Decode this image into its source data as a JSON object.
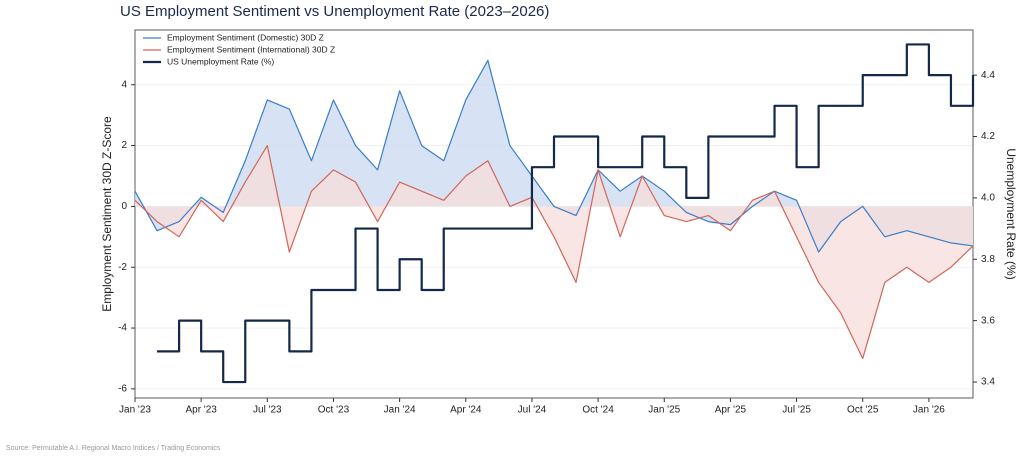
{
  "chart_data": {
    "type": "line",
    "title": "US Employment Sentiment vs Unemployment Rate (2023–2026)",
    "y_label": "Employment Sentiment 30D Z-Score",
    "y2_label": "Unemployment Rate (%)",
    "source": "Source: Permutable A.I. Regional Macro Indices / Trading Economics",
    "x": [
      "2023-01",
      "2023-02",
      "2023-03",
      "2023-04",
      "2023-05",
      "2023-06",
      "2023-07",
      "2023-08",
      "2023-09",
      "2023-10",
      "2023-11",
      "2023-12",
      "2024-01",
      "2024-02",
      "2024-03",
      "2024-04",
      "2024-05",
      "2024-06",
      "2024-07",
      "2024-08",
      "2024-09",
      "2024-10",
      "2024-11",
      "2024-12",
      "2025-01",
      "2025-02",
      "2025-03",
      "2025-04",
      "2025-05",
      "2025-06",
      "2025-07",
      "2025-08",
      "2025-09",
      "2025-10",
      "2025-11",
      "2025-12",
      "2026-01",
      "2026-02",
      "2026-03"
    ],
    "xlim": [
      "2023-01",
      "2026-03"
    ],
    "xticks": [
      {
        "value": "2023-01",
        "label": "Jan '23"
      },
      {
        "value": "2023-04",
        "label": "Apr '23"
      },
      {
        "value": "2023-07",
        "label": "Jul '23"
      },
      {
        "value": "2023-10",
        "label": "Oct '23"
      },
      {
        "value": "2024-01",
        "label": "Jan '24"
      },
      {
        "value": "2024-04",
        "label": "Apr '24"
      },
      {
        "value": "2024-07",
        "label": "Jul '24"
      },
      {
        "value": "2024-10",
        "label": "Oct '24"
      },
      {
        "value": "2025-01",
        "label": "Jan '25"
      },
      {
        "value": "2025-04",
        "label": "Apr '25"
      },
      {
        "value": "2025-07",
        "label": "Jul '25"
      },
      {
        "value": "2025-10",
        "label": "Oct '25"
      },
      {
        "value": "2026-01",
        "label": "Jan '26"
      }
    ],
    "ylim": [
      -6.3,
      5.8
    ],
    "yticks": [
      -6,
      -4,
      -2,
      0,
      2,
      4
    ],
    "y2lim": [
      3.348,
      4.547
    ],
    "y2ticks": [
      3.4,
      3.6,
      3.8,
      {
        "value": 4,
        "label": "4.0"
      },
      4.2,
      4.4
    ],
    "grid": true,
    "legend": "upper left",
    "series": [
      {
        "name": "Employment Sentiment (Domestic) 30D Z",
        "color": "#3a7dc9",
        "fill": "#c9daf0",
        "values": [
          0.5,
          -0.8,
          -0.5,
          0.3,
          -0.2,
          1.5,
          3.5,
          3.2,
          1.5,
          3.5,
          2.0,
          1.2,
          3.8,
          2.0,
          1.5,
          3.5,
          4.8,
          2.0,
          1.0,
          0,
          -0.3,
          1.2,
          0.5,
          1.0,
          0.5,
          -0.2,
          -0.5,
          -0.6,
          0,
          0.5,
          0.2,
          -1.5,
          -0.5,
          0,
          -1.0,
          -0.8,
          -1.0,
          -1.2,
          -1.3
        ]
      },
      {
        "name": "Employment Sentiment (International) 30D Z",
        "color": "#d0675a",
        "fill": "#f7dedb",
        "values": [
          0.2,
          -0.5,
          -1.0,
          0.2,
          -0.5,
          0.8,
          2.0,
          -1.5,
          0.5,
          1.2,
          0.8,
          -0.5,
          0.8,
          0.5,
          0.2,
          1.0,
          1.5,
          0,
          0.3,
          -1.0,
          -2.5,
          1.2,
          -1.0,
          1.0,
          -0.3,
          -0.5,
          -0.3,
          -0.8,
          0.2,
          0.5,
          -1.0,
          -2.5,
          -3.5,
          -5.0,
          -2.5,
          -2.0,
          -2.5,
          -2.0,
          -1.3
        ]
      },
      {
        "name": "US Unemployment Rate (%)",
        "color": "#14284b",
        "axis": "y2",
        "step": true,
        "values": [
          null,
          3.5,
          3.6,
          3.5,
          3.4,
          3.6,
          3.6,
          3.5,
          3.7,
          3.7,
          3.9,
          3.7,
          3.8,
          3.7,
          3.9,
          3.9,
          3.9,
          3.9,
          4.1,
          4.2,
          4.2,
          4.1,
          4.1,
          4.2,
          4.1,
          4.0,
          4.2,
          4.2,
          4.2,
          4.3,
          4.1,
          4.3,
          4.3,
          4.4,
          4.4,
          4.5,
          4.4,
          4.3,
          4.4
        ]
      }
    ]
  }
}
